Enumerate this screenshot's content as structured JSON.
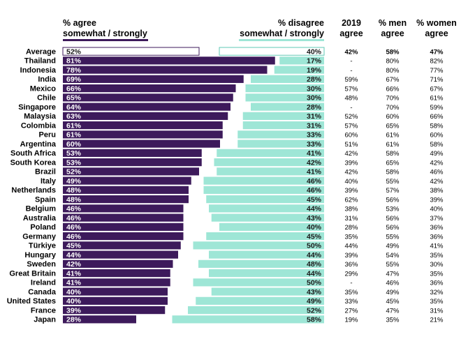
{
  "chart_data": {
    "type": "bar",
    "headers": {
      "agree": [
        "% agree",
        "somewhat / strongly"
      ],
      "disagree": [
        "% disagree",
        "somewhat / strongly"
      ],
      "col2019": [
        "2019",
        "agree"
      ],
      "men": [
        "% men",
        "agree"
      ],
      "women": [
        "% women",
        "agree"
      ]
    },
    "categories": [
      "Average",
      "Thailand",
      "Indonesia",
      "India",
      "Mexico",
      "Chile",
      "Singapore",
      "Malaysia",
      "Colombia",
      "Peru",
      "Argentina",
      "South Africa",
      "South Korea",
      "Brazil",
      "Italy",
      "Netherlands",
      "Spain",
      "Belgium",
      "Australia",
      "Poland",
      "Germany",
      "Türkiye",
      "Hungary",
      "Sweden",
      "Great Britain",
      "Ireland",
      "Canada",
      "United States",
      "France",
      "Japan"
    ],
    "series": [
      {
        "name": "% agree somewhat / strongly",
        "values": [
          52,
          81,
          78,
          69,
          66,
          65,
          64,
          63,
          61,
          61,
          60,
          53,
          53,
          52,
          49,
          48,
          48,
          46,
          46,
          46,
          46,
          45,
          44,
          42,
          41,
          41,
          40,
          40,
          39,
          28
        ]
      },
      {
        "name": "% disagree somewhat / strongly",
        "values": [
          40,
          17,
          19,
          28,
          30,
          30,
          28,
          31,
          31,
          33,
          33,
          41,
          42,
          41,
          46,
          46,
          45,
          44,
          43,
          40,
          45,
          50,
          44,
          48,
          44,
          50,
          43,
          49,
          52,
          58
        ]
      }
    ],
    "labels_agree": [
      "52%",
      "81%",
      "78%",
      "69%",
      "66%",
      "65%",
      "64%",
      "63%",
      "61%",
      "61%",
      "60%",
      "53%",
      "53%",
      "52%",
      "49%",
      "48%",
      "48%",
      "46%",
      "46%",
      "46%",
      "46%",
      "45%",
      "44%",
      "42%",
      "41%",
      "41%",
      "40%",
      "40%",
      "39%",
      "28%"
    ],
    "labels_disagree": [
      "40%",
      "17%",
      "19%",
      "28%",
      "30%",
      "30%",
      "28%",
      "31%",
      "31%",
      "33%",
      "33%",
      "41%",
      "42%",
      "41%",
      "46%",
      "46%",
      "45%",
      "44%",
      "43%",
      "40%",
      "45%",
      "50%",
      "44%",
      "48%",
      "44%",
      "50%",
      "43%",
      "49%",
      "52%",
      "58%"
    ],
    "table": {
      "agree_2019": [
        "42%",
        "-",
        "-",
        "59%",
        "57%",
        "48%",
        "-",
        "52%",
        "57%",
        "60%",
        "51%",
        "42%",
        "39%",
        "42%",
        "40%",
        "39%",
        "62%",
        "38%",
        "31%",
        "28%",
        "35%",
        "44%",
        "39%",
        "36%",
        "29%",
        "-",
        "35%",
        "33%",
        "27%",
        "19%"
      ],
      "men_agree": [
        "58%",
        "80%",
        "80%",
        "67%",
        "66%",
        "70%",
        "70%",
        "60%",
        "65%",
        "61%",
        "61%",
        "58%",
        "65%",
        "58%",
        "55%",
        "57%",
        "56%",
        "53%",
        "56%",
        "56%",
        "55%",
        "49%",
        "54%",
        "55%",
        "47%",
        "46%",
        "49%",
        "45%",
        "47%",
        "35%"
      ],
      "women_agree": [
        "47%",
        "82%",
        "77%",
        "71%",
        "67%",
        "61%",
        "59%",
        "66%",
        "58%",
        "60%",
        "58%",
        "49%",
        "42%",
        "46%",
        "42%",
        "38%",
        "39%",
        "40%",
        "37%",
        "36%",
        "36%",
        "41%",
        "35%",
        "30%",
        "35%",
        "36%",
        "32%",
        "35%",
        "31%",
        "21%"
      ]
    },
    "colors": {
      "agree": "#3d1a5b",
      "disagree": "#9ee6d6",
      "average_outline_agree": "#3d1a5b",
      "average_outline_disagree": "#5fc9b5",
      "text_dark": "#1a1a1a",
      "text_light": "#ffffff"
    }
  }
}
